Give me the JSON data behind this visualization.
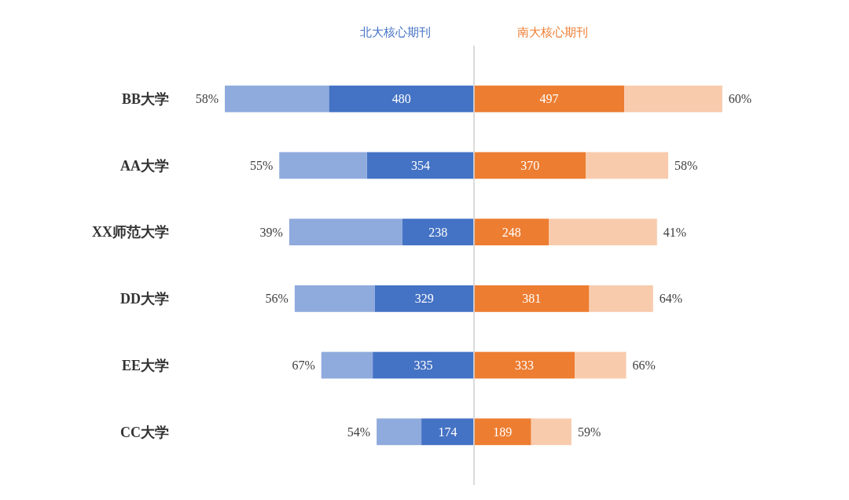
{
  "chart_data": [
    {
      "type": "bar",
      "orientation": "horizontal",
      "stacked": true,
      "tick_labels": "y",
      "categories": [
        "BB大学",
        "AA大学",
        "XX师范大学",
        "DD大学",
        "EE大学",
        "CC大学"
      ],
      "series": [
        {
          "name": "北大核心期刊",
          "color": "#4472c4",
          "values": [
            480,
            354,
            238,
            329,
            335,
            174
          ],
          "value_labels": [
            "480",
            "354",
            "238",
            "329",
            "335",
            "174"
          ]
        },
        {
          "color": "#8faadc",
          "values": [
            344,
            290,
            373,
            264,
            170,
            148
          ]
        }
      ],
      "annotations": [
        {
          "text": "58%",
          "x": 824,
          "y": "BB大学"
        },
        {
          "text": "55%",
          "x": 644,
          "y": "AA大学"
        },
        {
          "text": "39%",
          "x": 611,
          "y": "XX师范大学"
        },
        {
          "text": "56%",
          "x": 593,
          "y": "DD大学"
        },
        {
          "text": "67%",
          "x": 505,
          "y": "EE大学"
        },
        {
          "text": "54%",
          "x": 322,
          "y": "CC大学"
        }
      ]
    },
    {
      "type": "bar",
      "orientation": "horizontal",
      "stacked": true,
      "tick_labels": false,
      "categories": [
        "BB大学",
        "AA大学",
        "XX师范大学",
        "DD大学",
        "EE大学",
        "CC大学"
      ],
      "series": [
        {
          "name": "南大核心期刊",
          "color": "#ed7d31",
          "values": [
            497,
            370,
            248,
            381,
            333,
            189
          ],
          "value_labels": [
            "497",
            "370",
            "248",
            "381",
            "333",
            "189"
          ]
        },
        {
          "color": "#f8cbad",
          "values": [
            324,
            272,
            357,
            211,
            170,
            133
          ]
        }
      ],
      "annotations": [
        {
          "text": "60%",
          "x": 821,
          "y": "BB大学"
        },
        {
          "text": "58%",
          "x": 642,
          "y": "AA大学"
        },
        {
          "text": "41%",
          "x": 605,
          "y": "XX师范大学"
        },
        {
          "text": "64%",
          "x": 592,
          "y": "DD大学"
        },
        {
          "text": "66%",
          "x": 503,
          "y": "EE大学"
        },
        {
          "text": "59%",
          "x": 322,
          "y": "CC大学"
        }
      ]
    }
  ]
}
